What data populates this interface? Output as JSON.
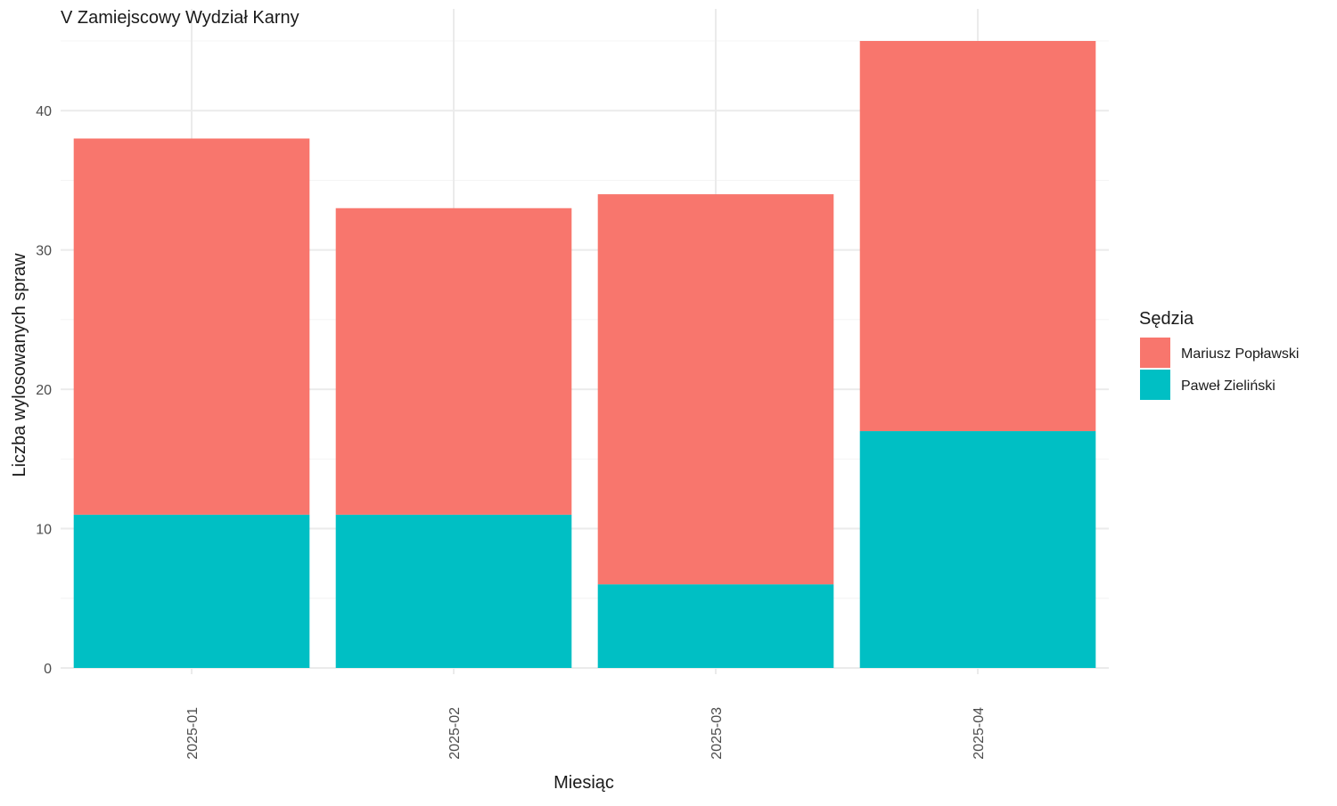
{
  "chart_data": {
    "type": "bar",
    "stacked": true,
    "title": "V Zamiejscowy Wydział Karny",
    "xlabel": "Miesiąc",
    "ylabel": "Liczba wylosowanych spraw",
    "categories": [
      "2025-01",
      "2025-02",
      "2025-03",
      "2025-04"
    ],
    "ylim": [
      0,
      45
    ],
    "yticks": [
      0,
      10,
      20,
      30,
      40
    ],
    "grid": true,
    "legend": {
      "title": "Sędzia",
      "position": "right",
      "entries": [
        "Mariusz Popławski",
        "Paweł Zieliński"
      ]
    },
    "series": [
      {
        "name": "Paweł Zieliński",
        "values": [
          11,
          11,
          6,
          17
        ],
        "color": "#00BFC4"
      },
      {
        "name": "Mariusz Popławski",
        "values": [
          27,
          22,
          28,
          28
        ],
        "color": "#F8766D"
      }
    ]
  }
}
